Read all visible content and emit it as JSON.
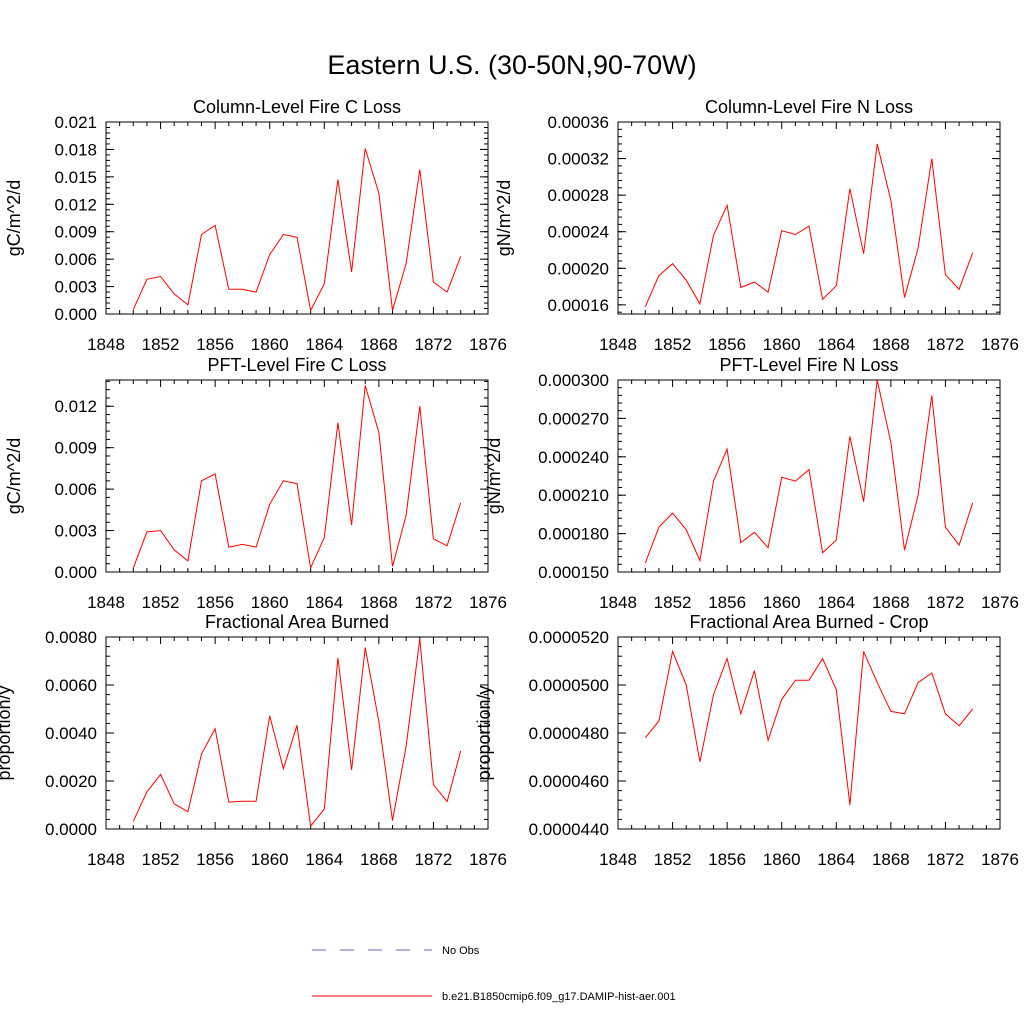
{
  "figure_title": "Eastern U.S. (30-50N,90-70W)",
  "legend": {
    "items": [
      {
        "label": "No Obs",
        "style": "dashed",
        "color": "#6a6ab0"
      },
      {
        "label": "b.e21.B1850cmip6.f09_g17.DAMIP-hist-aer.001",
        "style": "solid",
        "color": "#e8000b"
      }
    ]
  },
  "series_color": "#ff0000",
  "chart_data": [
    {
      "type": "line",
      "title": "Column-Level Fire C Loss",
      "ylabel": "gC/m^2/d",
      "xlim": [
        1848,
        1876
      ],
      "ylim": [
        0.0,
        0.021
      ],
      "xticks": [
        "1848",
        "1852",
        "1856",
        "1860",
        "1864",
        "1868",
        "1872",
        "1876"
      ],
      "yticks": [
        "0.000",
        "0.003",
        "0.006",
        "0.009",
        "0.012",
        "0.015",
        "0.018",
        "0.021"
      ],
      "x": [
        1850,
        1851,
        1852,
        1853,
        1854,
        1855,
        1856,
        1857,
        1858,
        1859,
        1860,
        1861,
        1862,
        1863,
        1864,
        1865,
        1866,
        1867,
        1868,
        1869,
        1870,
        1871,
        1872,
        1873,
        1874
      ],
      "series": [
        {
          "values": [
            0.0005,
            0.0038,
            0.0041,
            0.0022,
            0.001,
            0.0087,
            0.0097,
            0.0027,
            0.0027,
            0.0024,
            0.0065,
            0.0087,
            0.0084,
            0.0004,
            0.0033,
            0.0147,
            0.0046,
            0.0181,
            0.0132,
            0.0004,
            0.0055,
            0.0158,
            0.0035,
            0.0024,
            0.0063
          ]
        }
      ]
    },
    {
      "type": "line",
      "title": "Column-Level Fire N Loss",
      "ylabel": "gN/m^2/d",
      "xlim": [
        1848,
        1876
      ],
      "ylim": [
        0.00015,
        0.00036
      ],
      "xticks": [
        "1848",
        "1852",
        "1856",
        "1860",
        "1864",
        "1868",
        "1872",
        "1876"
      ],
      "yticks": [
        "0.00016",
        "0.00020",
        "0.00024",
        "0.00028",
        "0.00032",
        "0.00036"
      ],
      "x": [
        1850,
        1851,
        1852,
        1853,
        1854,
        1855,
        1856,
        1857,
        1858,
        1859,
        1860,
        1861,
        1862,
        1863,
        1864,
        1865,
        1866,
        1867,
        1868,
        1869,
        1870,
        1871,
        1872,
        1873,
        1874
      ],
      "series": [
        {
          "values": [
            0.000158,
            0.000192,
            0.000205,
            0.000187,
            0.000161,
            0.000236,
            0.000269,
            0.000179,
            0.000185,
            0.000174,
            0.000241,
            0.000237,
            0.000246,
            0.000166,
            0.000181,
            0.000287,
            0.000216,
            0.000336,
            0.000274,
            0.000168,
            0.000222,
            0.00032,
            0.000193,
            0.000177,
            0.000217
          ]
        }
      ]
    },
    {
      "type": "line",
      "title": "PFT-Level Fire C Loss",
      "ylabel": "gC/m^2/d",
      "xlim": [
        1848,
        1876
      ],
      "ylim": [
        0.0,
        0.0139
      ],
      "xticks": [
        "1848",
        "1852",
        "1856",
        "1860",
        "1864",
        "1868",
        "1872",
        "1876"
      ],
      "yticks": [
        "0.000",
        "0.003",
        "0.006",
        "0.009",
        "0.012"
      ],
      "x": [
        1850,
        1851,
        1852,
        1853,
        1854,
        1855,
        1856,
        1857,
        1858,
        1859,
        1860,
        1861,
        1862,
        1863,
        1864,
        1865,
        1866,
        1867,
        1868,
        1869,
        1870,
        1871,
        1872,
        1873,
        1874
      ],
      "series": [
        {
          "values": [
            0.0003,
            0.0029,
            0.003,
            0.0016,
            0.0008,
            0.0066,
            0.0071,
            0.0018,
            0.002,
            0.0018,
            0.0049,
            0.0066,
            0.0064,
            0.0003,
            0.0025,
            0.0108,
            0.0034,
            0.0135,
            0.0101,
            0.0004,
            0.0041,
            0.012,
            0.0024,
            0.0019,
            0.005
          ]
        }
      ]
    },
    {
      "type": "line",
      "title": "PFT-Level Fire N Loss",
      "ylabel": "gN/m^2/d",
      "xlim": [
        1848,
        1876
      ],
      "ylim": [
        0.00015,
        0.0003
      ],
      "xticks": [
        "1848",
        "1852",
        "1856",
        "1860",
        "1864",
        "1868",
        "1872",
        "1876"
      ],
      "yticks": [
        "0.000150",
        "0.000180",
        "0.000210",
        "0.000240",
        "0.000270",
        "0.000300"
      ],
      "x": [
        1850,
        1851,
        1852,
        1853,
        1854,
        1855,
        1856,
        1857,
        1858,
        1859,
        1860,
        1861,
        1862,
        1863,
        1864,
        1865,
        1866,
        1867,
        1868,
        1869,
        1870,
        1871,
        1872,
        1873,
        1874
      ],
      "series": [
        {
          "values": [
            0.000157,
            0.000185,
            0.000196,
            0.000183,
            0.000159,
            0.000221,
            0.000246,
            0.000173,
            0.000181,
            0.000169,
            0.000224,
            0.000221,
            0.00023,
            0.000165,
            0.000175,
            0.000256,
            0.000205,
            0.0003,
            0.000251,
            0.000167,
            0.00021,
            0.000288,
            0.000185,
            0.000171,
            0.000204
          ]
        }
      ]
    },
    {
      "type": "line",
      "title": "Fractional Area Burned",
      "ylabel": "proportion/y",
      "xlim": [
        1848,
        1876
      ],
      "ylim": [
        0.0,
        0.008
      ],
      "xticks": [
        "1848",
        "1852",
        "1856",
        "1860",
        "1864",
        "1868",
        "1872",
        "1876"
      ],
      "yticks": [
        "0.0000",
        "0.0020",
        "0.0040",
        "0.0060",
        "0.0080"
      ],
      "x": [
        1850,
        1851,
        1852,
        1853,
        1854,
        1855,
        1856,
        1857,
        1858,
        1859,
        1860,
        1861,
        1862,
        1863,
        1864,
        1865,
        1866,
        1867,
        1868,
        1869,
        1870,
        1871,
        1872,
        1873,
        1874
      ],
      "series": [
        {
          "values": [
            0.00032,
            0.00155,
            0.00227,
            0.00105,
            0.00072,
            0.00313,
            0.00418,
            0.00112,
            0.00116,
            0.00116,
            0.00472,
            0.00251,
            0.00432,
            0.00012,
            0.00083,
            0.00713,
            0.00246,
            0.00756,
            0.00447,
            0.00035,
            0.00344,
            0.00792,
            0.00185,
            0.00114,
            0.00325
          ]
        }
      ]
    },
    {
      "type": "line",
      "title": "Fractional Area Burned - Crop",
      "ylabel": "proportion/y",
      "xlim": [
        1848,
        1876
      ],
      "ylim": [
        4.4e-05,
        5.2e-05
      ],
      "xticks": [
        "1848",
        "1852",
        "1856",
        "1860",
        "1864",
        "1868",
        "1872",
        "1876"
      ],
      "yticks": [
        "0.0000440",
        "0.0000460",
        "0.0000480",
        "0.0000500",
        "0.0000520"
      ],
      "x": [
        1850,
        1851,
        1852,
        1853,
        1854,
        1855,
        1856,
        1857,
        1858,
        1859,
        1860,
        1861,
        1862,
        1863,
        1864,
        1865,
        1866,
        1867,
        1868,
        1869,
        1870,
        1871,
        1872,
        1873,
        1874
      ],
      "series": [
        {
          "values": [
            4.78e-05,
            4.85e-05,
            5.14e-05,
            5e-05,
            4.68e-05,
            4.96e-05,
            5.11e-05,
            4.88e-05,
            5.06e-05,
            4.77e-05,
            4.94e-05,
            5.02e-05,
            5.02e-05,
            5.11e-05,
            4.98e-05,
            4.5e-05,
            5.14e-05,
            5.01e-05,
            4.89e-05,
            4.88e-05,
            5.01e-05,
            5.05e-05,
            4.88e-05,
            4.83e-05,
            4.9e-05
          ]
        }
      ]
    }
  ]
}
